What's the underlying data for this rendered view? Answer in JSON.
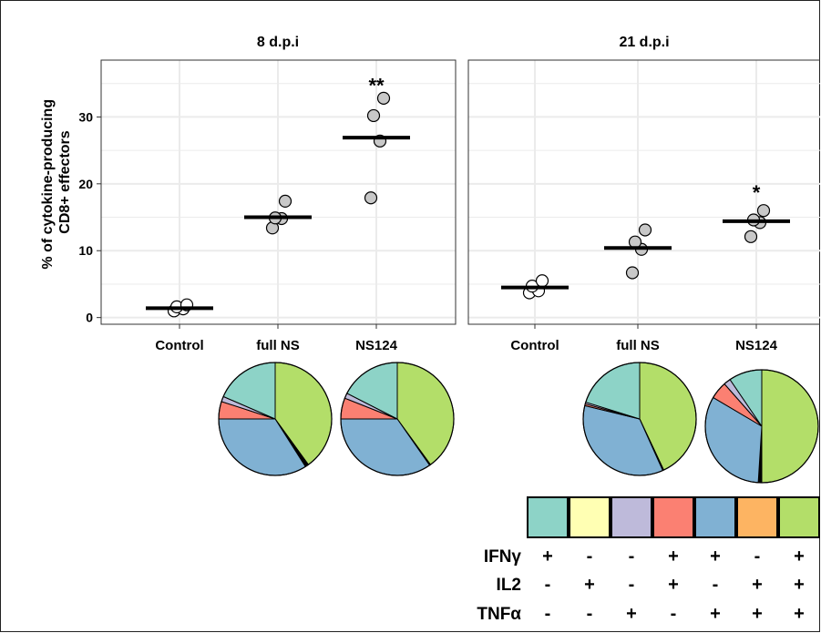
{
  "chart_data": [
    {
      "type": "scatter",
      "title": "8 d.p.i",
      "ylabel": "% of cytokine-producing CD8+ effectors",
      "categories": [
        "Control",
        "full NS",
        "NS124"
      ],
      "ylim": [
        -1,
        38.5
      ],
      "yticks": [
        0,
        10,
        20,
        30
      ],
      "grid": true,
      "points": [
        {
          "x": "Control",
          "y": 1.0,
          "fill": "#ffffff"
        },
        {
          "x": "Control",
          "y": 1.3,
          "fill": "#ffffff"
        },
        {
          "x": "Control",
          "y": 1.6,
          "fill": "#ffffff"
        },
        {
          "x": "Control",
          "y": 1.9,
          "fill": "#ffffff"
        },
        {
          "x": "full NS",
          "y": 13.4,
          "fill": "#c8c8c8"
        },
        {
          "x": "full NS",
          "y": 14.8,
          "fill": "#c8c8c8"
        },
        {
          "x": "full NS",
          "y": 14.9,
          "fill": "#c8c8c8"
        },
        {
          "x": "full NS",
          "y": 17.4,
          "fill": "#c8c8c8"
        },
        {
          "x": "NS124",
          "y": 17.9,
          "fill": "#c8c8c8"
        },
        {
          "x": "NS124",
          "y": 26.4,
          "fill": "#c8c8c8"
        },
        {
          "x": "NS124",
          "y": 30.2,
          "fill": "#c8c8c8"
        },
        {
          "x": "NS124",
          "y": 32.8,
          "fill": "#c8c8c8"
        }
      ],
      "means": [
        1.4,
        15.0,
        26.9
      ],
      "significance": [
        {
          "category": "NS124",
          "label": "**",
          "y": 35.3
        }
      ]
    },
    {
      "type": "scatter",
      "title": "21 d.p.i",
      "categories": [
        "Control",
        "full NS",
        "NS124"
      ],
      "ylim": [
        -1,
        38.5
      ],
      "grid": true,
      "points": [
        {
          "x": "Control",
          "y": 3.7,
          "fill": "#ffffff"
        },
        {
          "x": "Control",
          "y": 4.0,
          "fill": "#ffffff"
        },
        {
          "x": "Control",
          "y": 4.7,
          "fill": "#ffffff"
        },
        {
          "x": "Control",
          "y": 5.5,
          "fill": "#ffffff"
        },
        {
          "x": "full NS",
          "y": 6.7,
          "fill": "#c8c8c8"
        },
        {
          "x": "full NS",
          "y": 10.2,
          "fill": "#c8c8c8"
        },
        {
          "x": "full NS",
          "y": 11.3,
          "fill": "#c8c8c8"
        },
        {
          "x": "full NS",
          "y": 13.1,
          "fill": "#c8c8c8"
        },
        {
          "x": "NS124",
          "y": 12.1,
          "fill": "#c8c8c8"
        },
        {
          "x": "NS124",
          "y": 14.2,
          "fill": "#c8c8c8"
        },
        {
          "x": "NS124",
          "y": 14.6,
          "fill": "#c8c8c8"
        },
        {
          "x": "NS124",
          "y": 16.0,
          "fill": "#c8c8c8"
        }
      ],
      "means": [
        4.5,
        10.4,
        14.4
      ],
      "significance": [
        {
          "category": "NS124",
          "label": "*",
          "y": 19.3
        }
      ]
    },
    {
      "type": "pie",
      "group": "8 d.p.i",
      "category": "full NS",
      "values": [
        40,
        1,
        34,
        0,
        5,
        1.5,
        18.5
      ],
      "colors": [
        "#b3de69",
        "#000000",
        "#80b1d3",
        "#fdb462",
        "#fb8072",
        "#bebada",
        "#8dd3c7"
      ]
    },
    {
      "type": "pie",
      "group": "8 d.p.i",
      "category": "NS124",
      "values": [
        40,
        0.3,
        34.7,
        0,
        6,
        1.5,
        17.5
      ],
      "colors": [
        "#b3de69",
        "#000000",
        "#80b1d3",
        "#fdb462",
        "#fb8072",
        "#bebada",
        "#8dd3c7"
      ]
    },
    {
      "type": "pie",
      "group": "21 d.p.i",
      "category": "full NS",
      "values": [
        43,
        0.3,
        35.5,
        0,
        0.5,
        0.5,
        20.2
      ],
      "colors": [
        "#b3de69",
        "#000000",
        "#80b1d3",
        "#fdb462",
        "#fb8072",
        "#bebada",
        "#8dd3c7"
      ]
    },
    {
      "type": "pie",
      "group": "21 d.p.i",
      "category": "NS124",
      "values": [
        50,
        1,
        32.5,
        0,
        5,
        2,
        9.5
      ],
      "colors": [
        "#b3de69",
        "#000000",
        "#80b1d3",
        "#fdb462",
        "#fb8072",
        "#bebada",
        "#8dd3c7"
      ]
    },
    {
      "type": "table",
      "swatch_colors": [
        "#8dd3c7",
        "#ffffb3",
        "#bebada",
        "#fb8072",
        "#80b1d3",
        "#fdb462",
        "#b3de69"
      ],
      "rows": [
        {
          "label": "IFNγ",
          "values": [
            "+",
            "-",
            "-",
            "+",
            "+",
            "-",
            "+"
          ]
        },
        {
          "label": "IL2",
          "values": [
            "-",
            "+",
            "-",
            "+",
            "-",
            "+",
            "+"
          ]
        },
        {
          "label": "TNFα",
          "values": [
            "-",
            "-",
            "+",
            "-",
            "+",
            "+",
            "+"
          ]
        }
      ]
    }
  ]
}
